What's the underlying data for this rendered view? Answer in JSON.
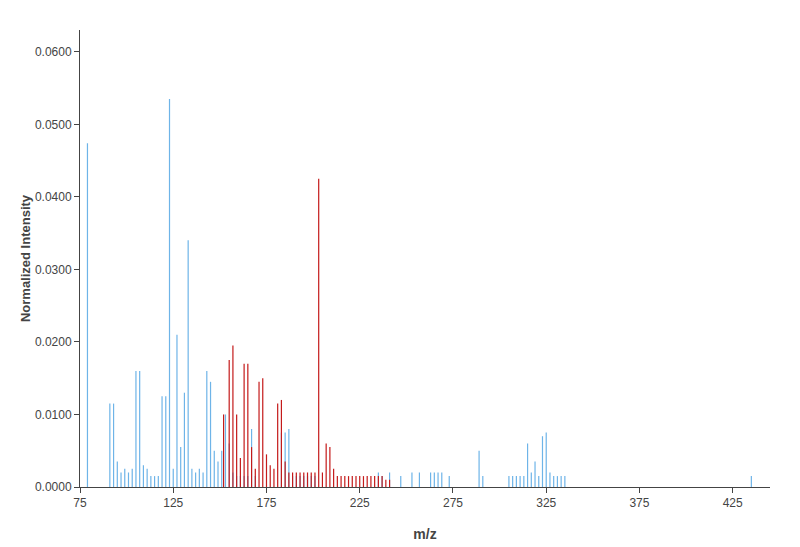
{
  "chart_data": {
    "type": "stem",
    "xlabel": "m/z",
    "ylabel": "Normalized Intensity",
    "xlim": [
      75,
      445
    ],
    "ylim": [
      0,
      0.063
    ],
    "xticks": [
      75,
      125,
      175,
      225,
      275,
      325,
      375,
      425
    ],
    "yticks": [
      {
        "value": 0.0,
        "label": "0.0000"
      },
      {
        "value": 0.01,
        "label": "0.0100"
      },
      {
        "value": 0.02,
        "label": "0.0200"
      },
      {
        "value": 0.03,
        "label": "0.0300"
      },
      {
        "value": 0.04,
        "label": "0.0400"
      },
      {
        "value": 0.05,
        "label": "0.0500"
      },
      {
        "value": 0.06,
        "label": "0.0600"
      }
    ],
    "grid": false,
    "series": [
      {
        "color": "#6eb4e8",
        "x": [
          79.0,
          91.0,
          93.0,
          95.0,
          97.0,
          99.0,
          101.0,
          103.0,
          105.0,
          107.0,
          109.0,
          111.0,
          113.0,
          115.0,
          117.0,
          119.0,
          121.0,
          123.0,
          125.0,
          127.0,
          129.0,
          131.0,
          133.0,
          135.0,
          137.0,
          139.0,
          141.0,
          143.0,
          145.0,
          147.0,
          149.0,
          151.0,
          153.0,
          155.0,
          157.0,
          159.0,
          161.0,
          163.0,
          165.0,
          167.0,
          169.0,
          183.0,
          185.0,
          187.0,
          189.0,
          191.0,
          193.0,
          195.0,
          197.0,
          199.0,
          201.0,
          235.0,
          237.0,
          241.0,
          247.0,
          253.0,
          257.0,
          263.0,
          265.0,
          267.0,
          269.0,
          273.0,
          289.0,
          291.0,
          305.0,
          307.0,
          309.0,
          311.0,
          313.0,
          315.0,
          317.0,
          319.0,
          321.0,
          323.0,
          325.0,
          327.0,
          329.0,
          331.0,
          333.0,
          335.0,
          435.0
        ],
        "values": [
          0.0474,
          0.0115,
          0.0115,
          0.0035,
          0.002,
          0.0025,
          0.002,
          0.0025,
          0.016,
          0.016,
          0.003,
          0.0025,
          0.0015,
          0.0015,
          0.0015,
          0.0125,
          0.0125,
          0.0535,
          0.0025,
          0.021,
          0.0055,
          0.013,
          0.034,
          0.0025,
          0.002,
          0.0025,
          0.002,
          0.016,
          0.0145,
          0.005,
          0.0035,
          0.005,
          0.01,
          0.006,
          0.002,
          0.0015,
          0.0015,
          0.0015,
          0.0015,
          0.008,
          0.0015,
          0.0075,
          0.0075,
          0.008,
          0.0015,
          0.0015,
          0.0015,
          0.0015,
          0.0015,
          0.0015,
          0.0015,
          0.002,
          0.0015,
          0.002,
          0.0015,
          0.002,
          0.002,
          0.002,
          0.002,
          0.002,
          0.002,
          0.0015,
          0.005,
          0.0015,
          0.0015,
          0.0015,
          0.0015,
          0.0015,
          0.0015,
          0.006,
          0.002,
          0.0035,
          0.0015,
          0.007,
          0.0075,
          0.002,
          0.0015,
          0.0015,
          0.0015,
          0.0015,
          0.0015
        ]
      },
      {
        "color": "#c41a1a",
        "x": [
          152.0,
          155.0,
          157.0,
          159.0,
          161.0,
          163.0,
          165.0,
          167.0,
          169.0,
          171.0,
          173.0,
          175.0,
          177.0,
          179.0,
          181.0,
          183.0,
          185.0,
          187.0,
          189.0,
          191.0,
          193.0,
          195.0,
          197.0,
          199.0,
          201.0,
          203.0,
          205.0,
          207.0,
          209.0,
          211.0,
          213.0,
          215.0,
          217.0,
          219.0,
          221.0,
          223.0,
          225.0,
          227.0,
          229.0,
          231.0,
          233.0,
          235.0,
          237.0,
          239.0,
          241.0
        ],
        "values": [
          0.01,
          0.0175,
          0.0195,
          0.01,
          0.004,
          0.017,
          0.017,
          0.0055,
          0.0025,
          0.0145,
          0.015,
          0.0045,
          0.003,
          0.0025,
          0.0115,
          0.012,
          0.0035,
          0.002,
          0.002,
          0.002,
          0.002,
          0.002,
          0.002,
          0.002,
          0.002,
          0.0425,
          0.002,
          0.006,
          0.0055,
          0.0025,
          0.0015,
          0.0015,
          0.0015,
          0.0015,
          0.0015,
          0.0015,
          0.0015,
          0.0015,
          0.0015,
          0.0015,
          0.0015,
          0.0015,
          0.0015,
          0.001,
          0.001
        ]
      }
    ]
  }
}
